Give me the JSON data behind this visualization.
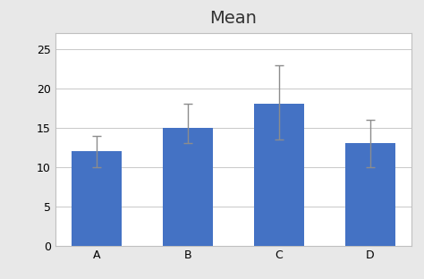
{
  "categories": [
    "A",
    "B",
    "C",
    "D"
  ],
  "values": [
    12,
    15,
    18,
    13
  ],
  "error_upper": [
    2,
    3,
    5,
    3
  ],
  "error_lower": [
    2,
    2,
    4.5,
    3
  ],
  "bar_color": "#4472C4",
  "error_color": "#8C8C8C",
  "title": "Mean",
  "title_fontsize": 14,
  "ylim": [
    0,
    27
  ],
  "yticks": [
    0,
    5,
    10,
    15,
    20,
    25
  ],
  "tick_fontsize": 9,
  "bar_width": 0.55,
  "plot_bg": "#FFFFFF",
  "figure_bg": "#E8E8E8",
  "grid_color": "#C8C8C8",
  "spine_color": "#C0C0C0",
  "outer_border_color": "#BEBEBE"
}
